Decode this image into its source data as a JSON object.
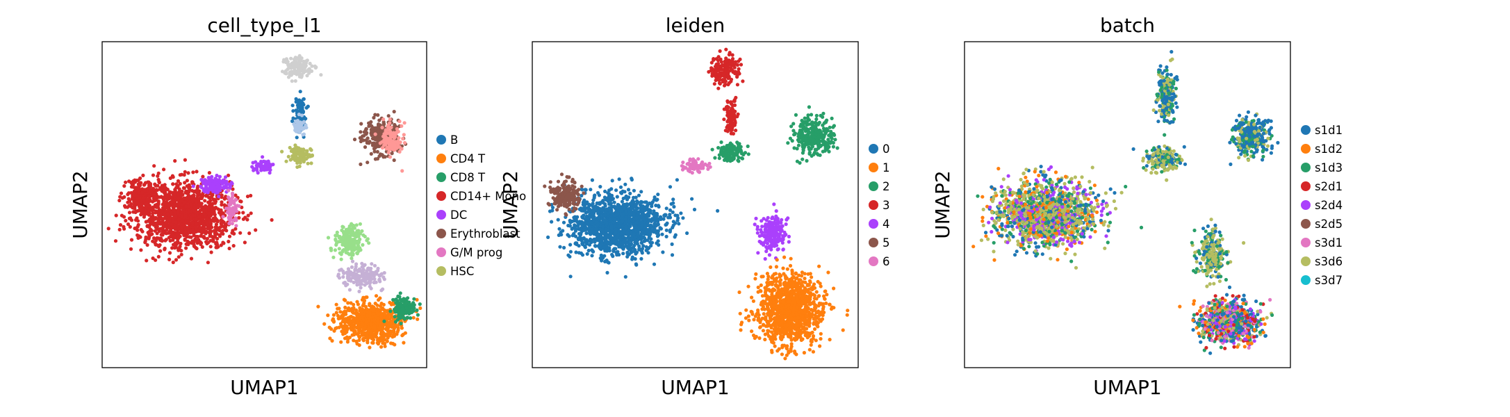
{
  "chart_data": [
    {
      "type": "scatter",
      "title": "cell_type_l1",
      "xlabel": "UMAP1",
      "ylabel": "UMAP2",
      "grid": false,
      "legend_position": "right",
      "series": [
        {
          "name": "B",
          "color": "#1f77b4"
        },
        {
          "name": "CD4 T",
          "color": "#ff7f0e"
        },
        {
          "name": "CD8 T",
          "color": "#279e68"
        },
        {
          "name": "CD14+ Mono",
          "color": "#d62728"
        },
        {
          "name": "DC",
          "color": "#aa40fc"
        },
        {
          "name": "Erythroblast",
          "color": "#8c564b"
        },
        {
          "name": "G/M prog",
          "color": "#e377c2"
        },
        {
          "name": "HSC",
          "color": "#b5bd61"
        }
      ]
    },
    {
      "type": "scatter",
      "title": "leiden",
      "xlabel": "UMAP1",
      "ylabel": "UMAP2",
      "grid": false,
      "legend_position": "right",
      "series": [
        {
          "name": "0",
          "color": "#1f77b4"
        },
        {
          "name": "1",
          "color": "#ff7f0e"
        },
        {
          "name": "2",
          "color": "#279e68"
        },
        {
          "name": "3",
          "color": "#d62728"
        },
        {
          "name": "4",
          "color": "#aa40fc"
        },
        {
          "name": "5",
          "color": "#8c564b"
        },
        {
          "name": "6",
          "color": "#e377c2"
        }
      ]
    },
    {
      "type": "scatter",
      "title": "batch",
      "xlabel": "UMAP1",
      "ylabel": "UMAP2",
      "grid": false,
      "legend_position": "right",
      "series": [
        {
          "name": "s1d1",
          "color": "#1f77b4"
        },
        {
          "name": "s1d2",
          "color": "#ff7f0e"
        },
        {
          "name": "s1d3",
          "color": "#279e68"
        },
        {
          "name": "s2d1",
          "color": "#d62728"
        },
        {
          "name": "s2d4",
          "color": "#aa40fc"
        },
        {
          "name": "s2d5",
          "color": "#8c564b"
        },
        {
          "name": "s3d1",
          "color": "#e377c2"
        },
        {
          "name": "s3d6",
          "color": "#b5bd61"
        },
        {
          "name": "s3d7",
          "color": "#17becf"
        }
      ]
    }
  ]
}
